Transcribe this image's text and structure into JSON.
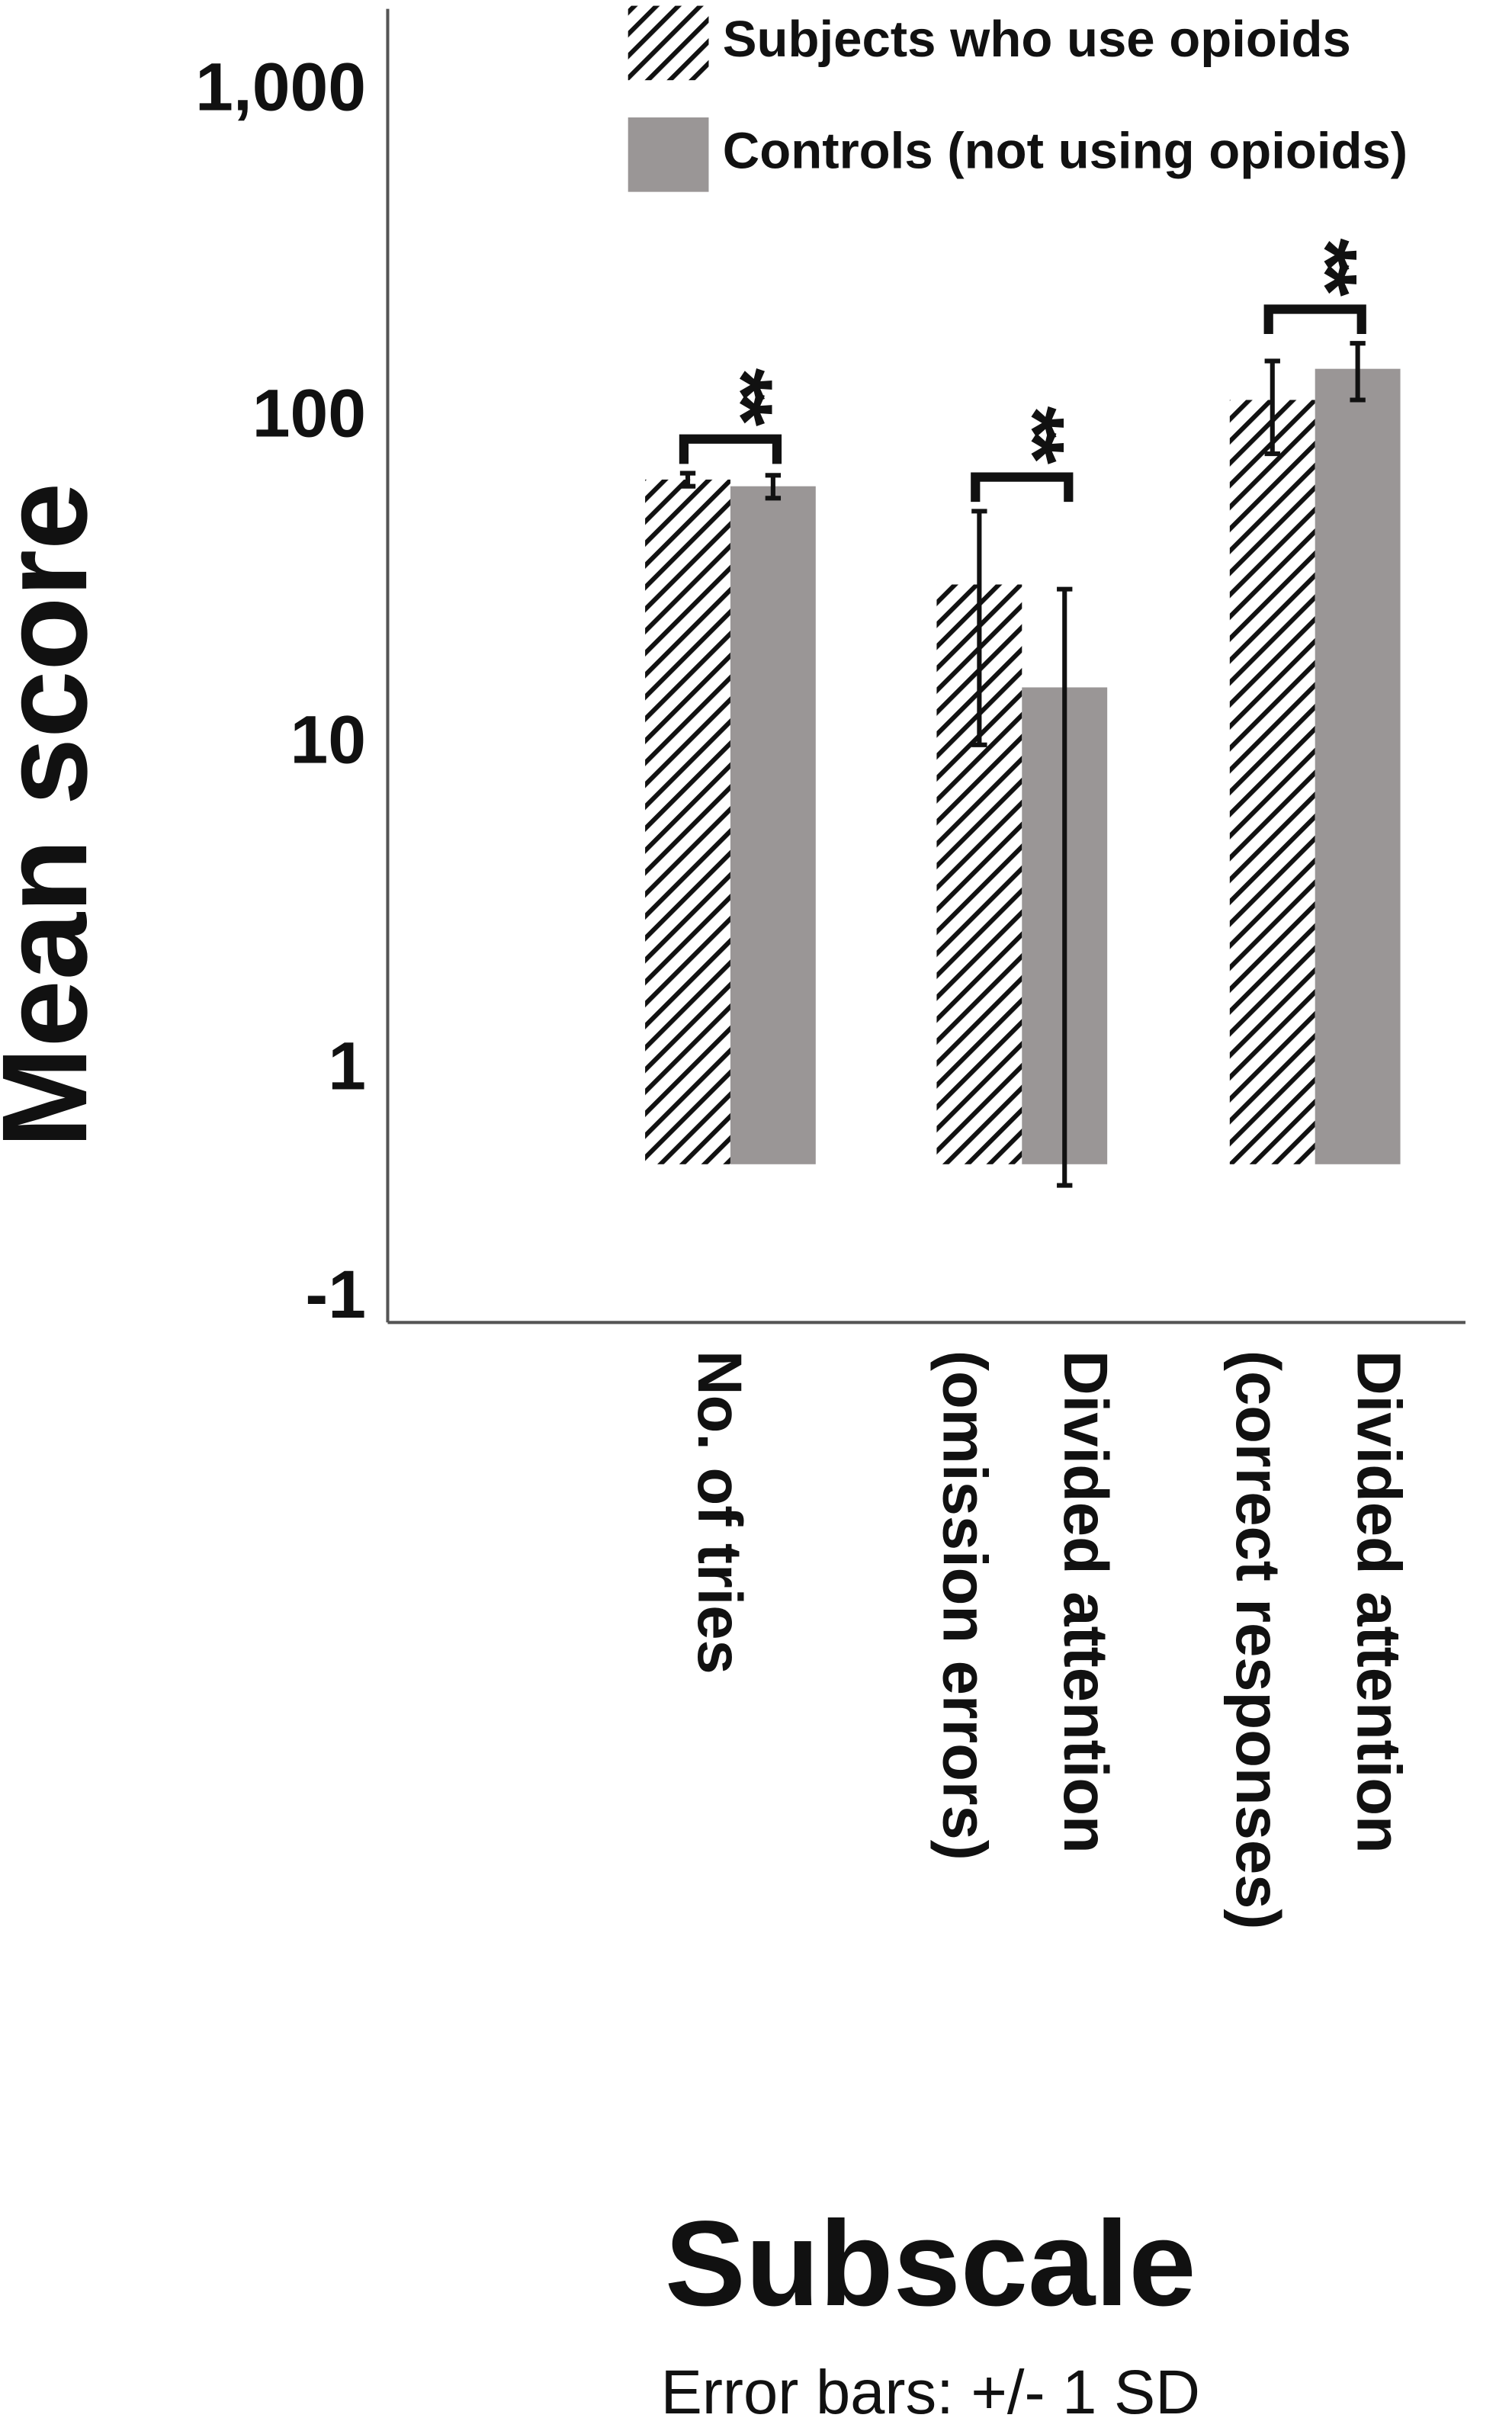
{
  "chart_data": {
    "type": "bar",
    "y_label": "Mean score",
    "x_label": "Subscale",
    "footnote": "Error bars: +/- 1 SD",
    "categories": [
      [
        "No. of tries"
      ],
      [
        "Divided attention",
        "(omission errors)"
      ],
      [
        "Divided attention",
        "(correct responses)"
      ]
    ],
    "series": [
      {
        "name": "Subjects who use opioids",
        "color": "#000000",
        "pattern": "hatch",
        "values": [
          65,
          31,
          114
        ],
        "errors": [
          3,
          21,
          36
        ]
      },
      {
        "name": "Controls (not using opioids)",
        "color": "#9a9696",
        "pattern": "solid",
        "values": [
          62,
          15,
          142
        ],
        "errors": [
          5,
          15,
          28
        ]
      }
    ],
    "annotations": [
      "**",
      "**",
      "**"
    ],
    "y_scale": "log",
    "ylim": [
      -1.2,
      1800
    ],
    "yticks": [
      {
        "value": 1000,
        "label": "1,000"
      },
      100,
      10,
      1,
      -1
    ],
    "legend": "top-right"
  }
}
